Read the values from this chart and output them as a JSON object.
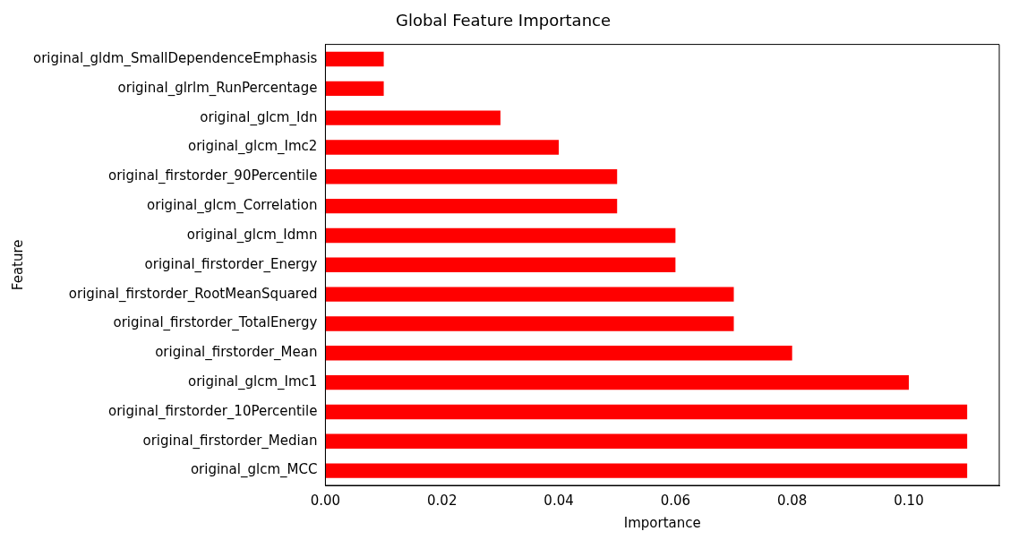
{
  "chart_data": {
    "type": "bar",
    "orientation": "horizontal",
    "title": "Global Feature Importance",
    "xlabel": "Importance",
    "ylabel": "Feature",
    "categories": [
      "original_gldm_SmallDependenceEmphasis",
      "original_glrlm_RunPercentage",
      "original_glcm_Idn",
      "original_glcm_Imc2",
      "original_firstorder_90Percentile",
      "original_glcm_Correlation",
      "original_glcm_Idmn",
      "original_firstorder_Energy",
      "original_firstorder_RootMeanSquared",
      "original_firstorder_TotalEnergy",
      "original_firstorder_Mean",
      "original_glcm_Imc1",
      "original_firstorder_10Percentile",
      "original_firstorder_Median",
      "original_glcm_MCC"
    ],
    "values": [
      0.01,
      0.01,
      0.03,
      0.04,
      0.05,
      0.05,
      0.06,
      0.06,
      0.07,
      0.07,
      0.08,
      0.1,
      0.11,
      0.11,
      0.11
    ],
    "color": "#ff0000",
    "xlim": [
      0,
      0.1155
    ],
    "xticks": [
      {
        "value": 0,
        "label": "0.00"
      },
      {
        "value": 0.02,
        "label": "0.02"
      },
      {
        "value": 0.04,
        "label": "0.04"
      },
      {
        "value": 0.06,
        "label": "0.06"
      },
      {
        "value": 0.08,
        "label": "0.08"
      },
      {
        "value": 0.1,
        "label": "0.10"
      }
    ],
    "grid": false,
    "legend": false
  }
}
